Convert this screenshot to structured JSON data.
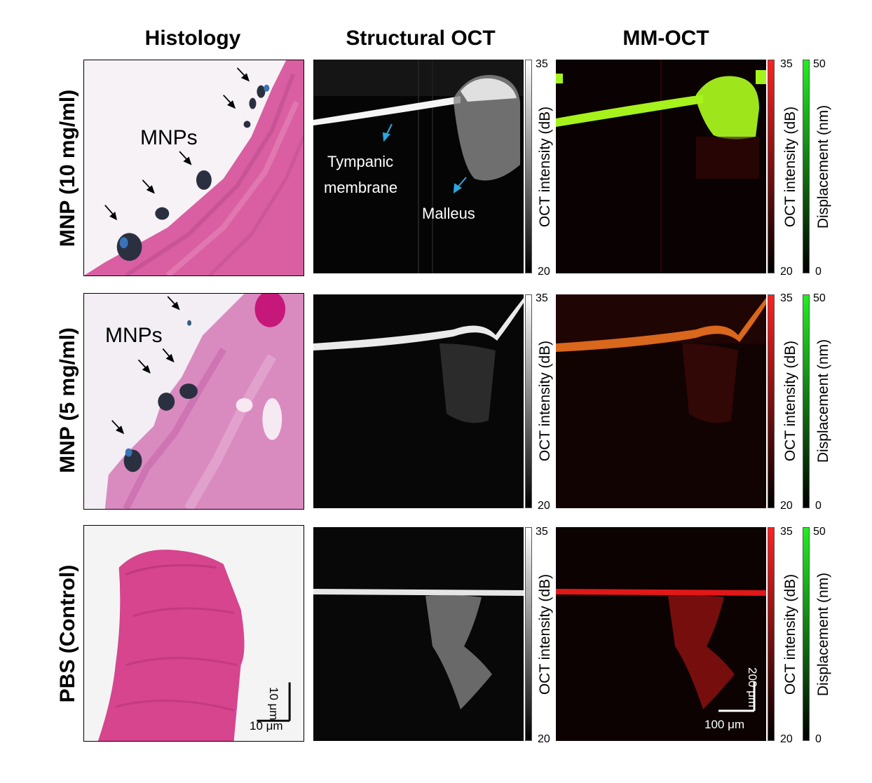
{
  "columns": {
    "histology": "Histology",
    "structural": "Structural OCT",
    "mmoct": "MM-OCT"
  },
  "rows": [
    {
      "label": "MNP (10 mg/ml)"
    },
    {
      "label": "MNP (5 mg/ml)"
    },
    {
      "label": "PBS (Control)"
    }
  ],
  "annotations": {
    "mnps_row1": "MNPs",
    "mnps_row2": "MNPs",
    "tympanic_line1": "Tympanic",
    "tympanic_line2": "membrane",
    "malleus": "Malleus"
  },
  "colorbars": {
    "oct_label": "OCT intensity (dB)",
    "disp_label": "Displacement (nm)",
    "oct_max": "35",
    "oct_min": "20",
    "disp_max": "50",
    "disp_min": "0"
  },
  "scalebars": {
    "histo_vertical": "10 μm",
    "histo_horizontal": "10 μm",
    "oct_vertical": "200 μm",
    "oct_horizontal": "100 μm"
  },
  "colors": {
    "tissue_pink": "#d8609c",
    "mnp_dark": "#2a3040",
    "arrow_blue": "#29a8e0",
    "displacement_green": "#a6f21c",
    "oct_red": "#e01818"
  }
}
